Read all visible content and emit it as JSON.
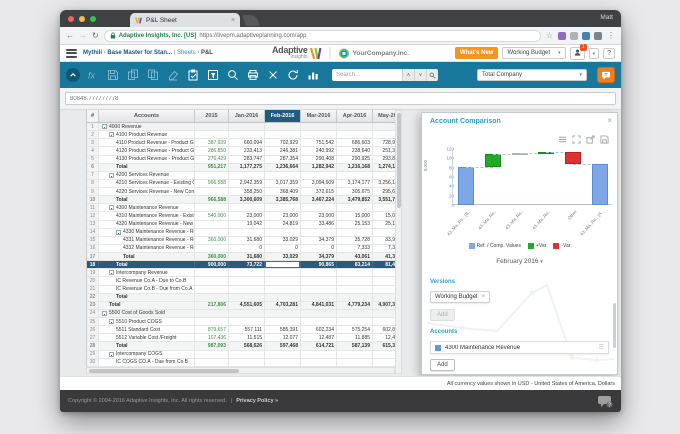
{
  "colors": {
    "toolbar_teal": "#17789b",
    "selected_row": "#2a5a7e",
    "feb_header": "#1f5c7f",
    "green_value": "#3b8f44",
    "orange": "#f7941d",
    "panel_title": "#2da0c6",
    "bar_ref": "#7da7e6",
    "bar_pos": "#22aa22",
    "bar_neg": "#e03131",
    "footer_bg": "#3a3a3c"
  },
  "browser": {
    "tab_title": "P&L Sheet",
    "tab_close": "×",
    "profile": "Matt",
    "back": "←",
    "forward": "→",
    "reload": "↻",
    "security": "Adaptive Insights, Inc. [US]",
    "url": "https://livepm.adaptiveplanning.com/app",
    "star": "☆",
    "menu_dots": "⋮",
    "extension_colors": [
      "#8e6cc1",
      "#aeb2b5",
      "#4a7fb5",
      "#7d8488"
    ]
  },
  "header": {
    "breadcrumb": {
      "app": "Mythili",
      "sep1": "›",
      "model": "Base Master for Stan...",
      "pipe": "|",
      "section": "Sheets",
      "sep2": "›",
      "page": "P&L"
    },
    "logo_line1": "Adaptive",
    "logo_line2": "Insights",
    "company": "YourCompany.Inc.",
    "whats_new": "What's New",
    "version_select": "Working Budget",
    "badge": "1",
    "help": "?",
    "caret": "▾"
  },
  "toolbar": {
    "icons": [
      {
        "name": "fx",
        "disabled": true
      },
      {
        "name": "save",
        "disabled": true
      },
      {
        "name": "copy-back",
        "disabled": true
      },
      {
        "name": "copy-forward",
        "disabled": true
      },
      {
        "name": "eraser",
        "disabled": true
      },
      {
        "name": "paste-special",
        "disabled": false
      },
      {
        "name": "sheet-filter",
        "disabled": false
      },
      {
        "name": "zoom",
        "disabled": false
      },
      {
        "name": "print",
        "disabled": false
      },
      {
        "name": "clear",
        "disabled": false
      },
      {
        "name": "refresh",
        "disabled": false
      },
      {
        "name": "chart",
        "disabled": false
      }
    ],
    "search_placeholder": "Search...",
    "org_select": "Total Company"
  },
  "formula_bar": {
    "value": "80848.777777778"
  },
  "grid": {
    "columns": [
      "#",
      "Accounts",
      "2015",
      "Jan-2016",
      "Feb-2016",
      "Mar-2016",
      "Apr-2016",
      "May-2016"
    ],
    "active_column": "Feb-2016",
    "rows": [
      {
        "n": 1,
        "name": "4000 Revenue",
        "lvl": 0,
        "tog": true,
        "type": "group0",
        "v": [
          "",
          "",
          "",
          "",
          "",
          ""
        ]
      },
      {
        "n": 2,
        "name": "4100 Product Revenue",
        "lvl": 1,
        "tog": true,
        "type": "group",
        "v": [
          "",
          "",
          "",
          "",
          "",
          ""
        ]
      },
      {
        "n": 3,
        "name": "4110 Product Revenue - Product Group A",
        "lvl": 2,
        "type": "detail",
        "v": [
          "387,939",
          "660,094",
          "702,929",
          "751,542",
          "686,603",
          "728,9"
        ]
      },
      {
        "n": 4,
        "name": "4120 Product Revenue - Product Group B",
        "lvl": 2,
        "type": "detail",
        "v": [
          "286,850",
          "233,413",
          "246,381",
          "240,992",
          "238,640",
          "251,3"
        ]
      },
      {
        "n": 5,
        "name": "4130 Product Revenue - Product Group C",
        "lvl": 2,
        "type": "detail",
        "v": [
          "276,429",
          "283,747",
          "287,354",
          "290,408",
          "290,925",
          "293,8"
        ]
      },
      {
        "n": 6,
        "name": "Total",
        "lvl": 2,
        "type": "total",
        "v": [
          "951,217",
          "1,177,275",
          "1,236,664",
          "1,282,942",
          "1,216,168",
          "1,274,1"
        ]
      },
      {
        "n": 7,
        "name": "4200 Services Revenue",
        "lvl": 1,
        "tog": true,
        "type": "group",
        "v": [
          "",
          "",
          "",
          "",
          "",
          ""
        ]
      },
      {
        "n": 8,
        "name": "4210 Services Revenue - Existing Contracts",
        "lvl": 2,
        "type": "detail",
        "v": [
          "966,588",
          "2,942,359",
          "3,017,359",
          "3,094,609",
          "3,174,177",
          "3,256,1"
        ]
      },
      {
        "n": 9,
        "name": "4220 Services Revenue - New Contracts",
        "lvl": 2,
        "type": "detail",
        "v": [
          "",
          "358,250",
          "368,409",
          "372,615",
          "305,675",
          "295,6"
        ]
      },
      {
        "n": 10,
        "name": "Total",
        "lvl": 2,
        "type": "total",
        "v": [
          "966,588",
          "3,300,609",
          "3,385,768",
          "3,467,224",
          "3,479,852",
          "3,551,7"
        ]
      },
      {
        "n": 11,
        "name": "4300 Maintenance Revenue",
        "lvl": 1,
        "tog": true,
        "type": "group",
        "v": [
          "",
          "",
          "",
          "",
          "",
          ""
        ]
      },
      {
        "n": 12,
        "name": "4310 Maintenance Revenue - Existing Contracts",
        "lvl": 2,
        "type": "detail",
        "v": [
          "540,000",
          "23,000",
          "23,000",
          "23,000",
          "15,000",
          "15,0"
        ]
      },
      {
        "n": 13,
        "name": "4320 Maintenance Revenue - New Contracts",
        "lvl": 2,
        "type": "detail",
        "v": [
          "",
          "19,042",
          "24,819",
          "33,486",
          "25,153",
          "25,1"
        ]
      },
      {
        "n": 14,
        "name": "4330 Maintenance Revenue - Renewals",
        "lvl": 2,
        "tog": true,
        "type": "group",
        "v": [
          "",
          "",
          "",
          "",
          "",
          ""
        ]
      },
      {
        "n": 15,
        "name": "4331 Maintenance Revenue - Renewals /from Existing",
        "lvl": 3,
        "type": "detail",
        "v": [
          "360,000",
          "31,680",
          "33,029",
          "34,379",
          "35,728",
          "33,9"
        ]
      },
      {
        "n": 16,
        "name": "4332 Maintenance Revenue - Renewals /from New",
        "lvl": 3,
        "type": "detail",
        "v": [
          "",
          "0",
          "0",
          "0",
          "7,333",
          "7,3"
        ]
      },
      {
        "n": 17,
        "name": "Total",
        "lvl": 3,
        "type": "total",
        "v": [
          "360,000",
          "31,680",
          "33,029",
          "34,379",
          "43,061",
          "41,3"
        ]
      },
      {
        "n": 18,
        "name": "Total",
        "lvl": 2,
        "type": "total",
        "selected": true,
        "sel_col": 2,
        "v": [
          "900,000",
          "73,722",
          "80,849",
          "90,865",
          "83,214",
          "81,4"
        ]
      },
      {
        "n": 19,
        "name": "Intercompany Revenue",
        "lvl": 1,
        "tog": true,
        "type": "group",
        "v": [
          "",
          "",
          "",
          "",
          "",
          ""
        ]
      },
      {
        "n": 20,
        "name": "IC Revenue Co.A - Due to Co.B",
        "lvl": 2,
        "type": "detail",
        "v": [
          "",
          "",
          "",
          "",
          "",
          ""
        ]
      },
      {
        "n": 21,
        "name": "IC Revenue Co.B - Due from Co.A",
        "lvl": 2,
        "type": "detail",
        "v": [
          "",
          "",
          "",
          "",
          "",
          ""
        ]
      },
      {
        "n": 22,
        "name": "Total",
        "lvl": 2,
        "type": "total",
        "v": [
          "",
          "",
          "",
          "",
          "",
          ""
        ]
      },
      {
        "n": 23,
        "name": "Total",
        "lvl": 1,
        "type": "total",
        "v": [
          "217,806",
          "4,551,605",
          "4,703,281",
          "4,841,031",
          "4,779,234",
          "4,907,3"
        ]
      },
      {
        "n": 24,
        "name": "5500 Cost of Goods Sold",
        "lvl": 0,
        "tog": true,
        "type": "group0",
        "v": [
          "",
          "",
          "",
          "",
          "",
          ""
        ]
      },
      {
        "n": 25,
        "name": "5510 Product COGS",
        "lvl": 1,
        "tog": true,
        "type": "group",
        "v": [
          "",
          "",
          "",
          "",
          "",
          ""
        ]
      },
      {
        "n": 26,
        "name": "5511 Standard Cost",
        "lvl": 2,
        "type": "detail",
        "v": [
          "879,657",
          "557,111",
          "585,391",
          "602,234",
          "575,254",
          "602,8"
        ]
      },
      {
        "n": 27,
        "name": "5512 Variable Cost /Freight",
        "lvl": 2,
        "type": "detail",
        "v": [
          "107,436",
          "11,515",
          "12,077",
          "12,487",
          "11,885",
          "12,4"
        ]
      },
      {
        "n": 28,
        "name": "Total",
        "lvl": 2,
        "type": "total",
        "v": [
          "987,093",
          "568,626",
          "597,468",
          "614,721",
          "587,139",
          "615,3"
        ]
      },
      {
        "n": 29,
        "name": "Intercompany COGS",
        "lvl": 1,
        "tog": true,
        "type": "group",
        "v": [
          "",
          "",
          "",
          "",
          "",
          ""
        ]
      },
      {
        "n": 30,
        "name": "IC COGS CO.A - Due from Co.B",
        "lvl": 2,
        "type": "detail",
        "v": [
          "",
          "",
          "",
          "",
          "",
          ""
        ]
      }
    ]
  },
  "panel": {
    "title": "Account Comparison",
    "close": "×",
    "tools": [
      "chart-menu",
      "chart-expand",
      "chart-export",
      "chart-save"
    ],
    "versions": {
      "header": "Versions",
      "chips": [
        {
          "label": "Working Budget",
          "close": "×"
        }
      ],
      "add_label": "Add",
      "add_disabled": true
    },
    "accounts": {
      "header": "Accounts",
      "items": [
        {
          "label": "4300 Maintenance Revenue"
        }
      ],
      "add_label": "Add"
    }
  },
  "chart_data": {
    "type": "bar",
    "subtype": "waterfall-variance",
    "title": "Account Comparison",
    "period_label": "February 2016",
    "ylabel": "$,000",
    "ylim": [
      0,
      120
    ],
    "yticks": [
      0,
      20,
      40,
      60,
      80,
      100,
      120
    ],
    "bars": [
      {
        "label": "43..Ma..Re.. (B..",
        "kind": "ref",
        "start": 0,
        "end": 82
      },
      {
        "label": "43..Ma..Re..",
        "kind": "pos",
        "start": 81,
        "end": 110
      },
      {
        "label": "43..Ma..Re..",
        "kind": "neutral",
        "start": 109,
        "end": 111
      },
      {
        "label": "43..Ma..Re..",
        "kind": "pos",
        "start": 111,
        "end": 113
      },
      {
        "label": "Other",
        "kind": "neg",
        "start": 88,
        "end": 113
      },
      {
        "label": "43..Ma..Re.. (A..",
        "kind": "ref",
        "start": 0,
        "end": 88
      }
    ],
    "connectors": [
      82,
      110,
      111,
      113,
      88
    ],
    "legend": [
      {
        "label": "Ref. / Comp. Values",
        "color": "#7da7e6"
      },
      {
        "label": "+Var",
        "color": "#22aa22"
      },
      {
        "label": "-Var",
        "color": "#e03131"
      }
    ],
    "legend_position": "bottom"
  },
  "status_bar": "All currency values shown in USD - United States of America, Dollars",
  "footer": {
    "copyright": "Copyright © 2004-2016 Adaptive Insights, Inc. All rights reserved.",
    "pipe": "|",
    "privacy": "Privacy Policy »"
  }
}
